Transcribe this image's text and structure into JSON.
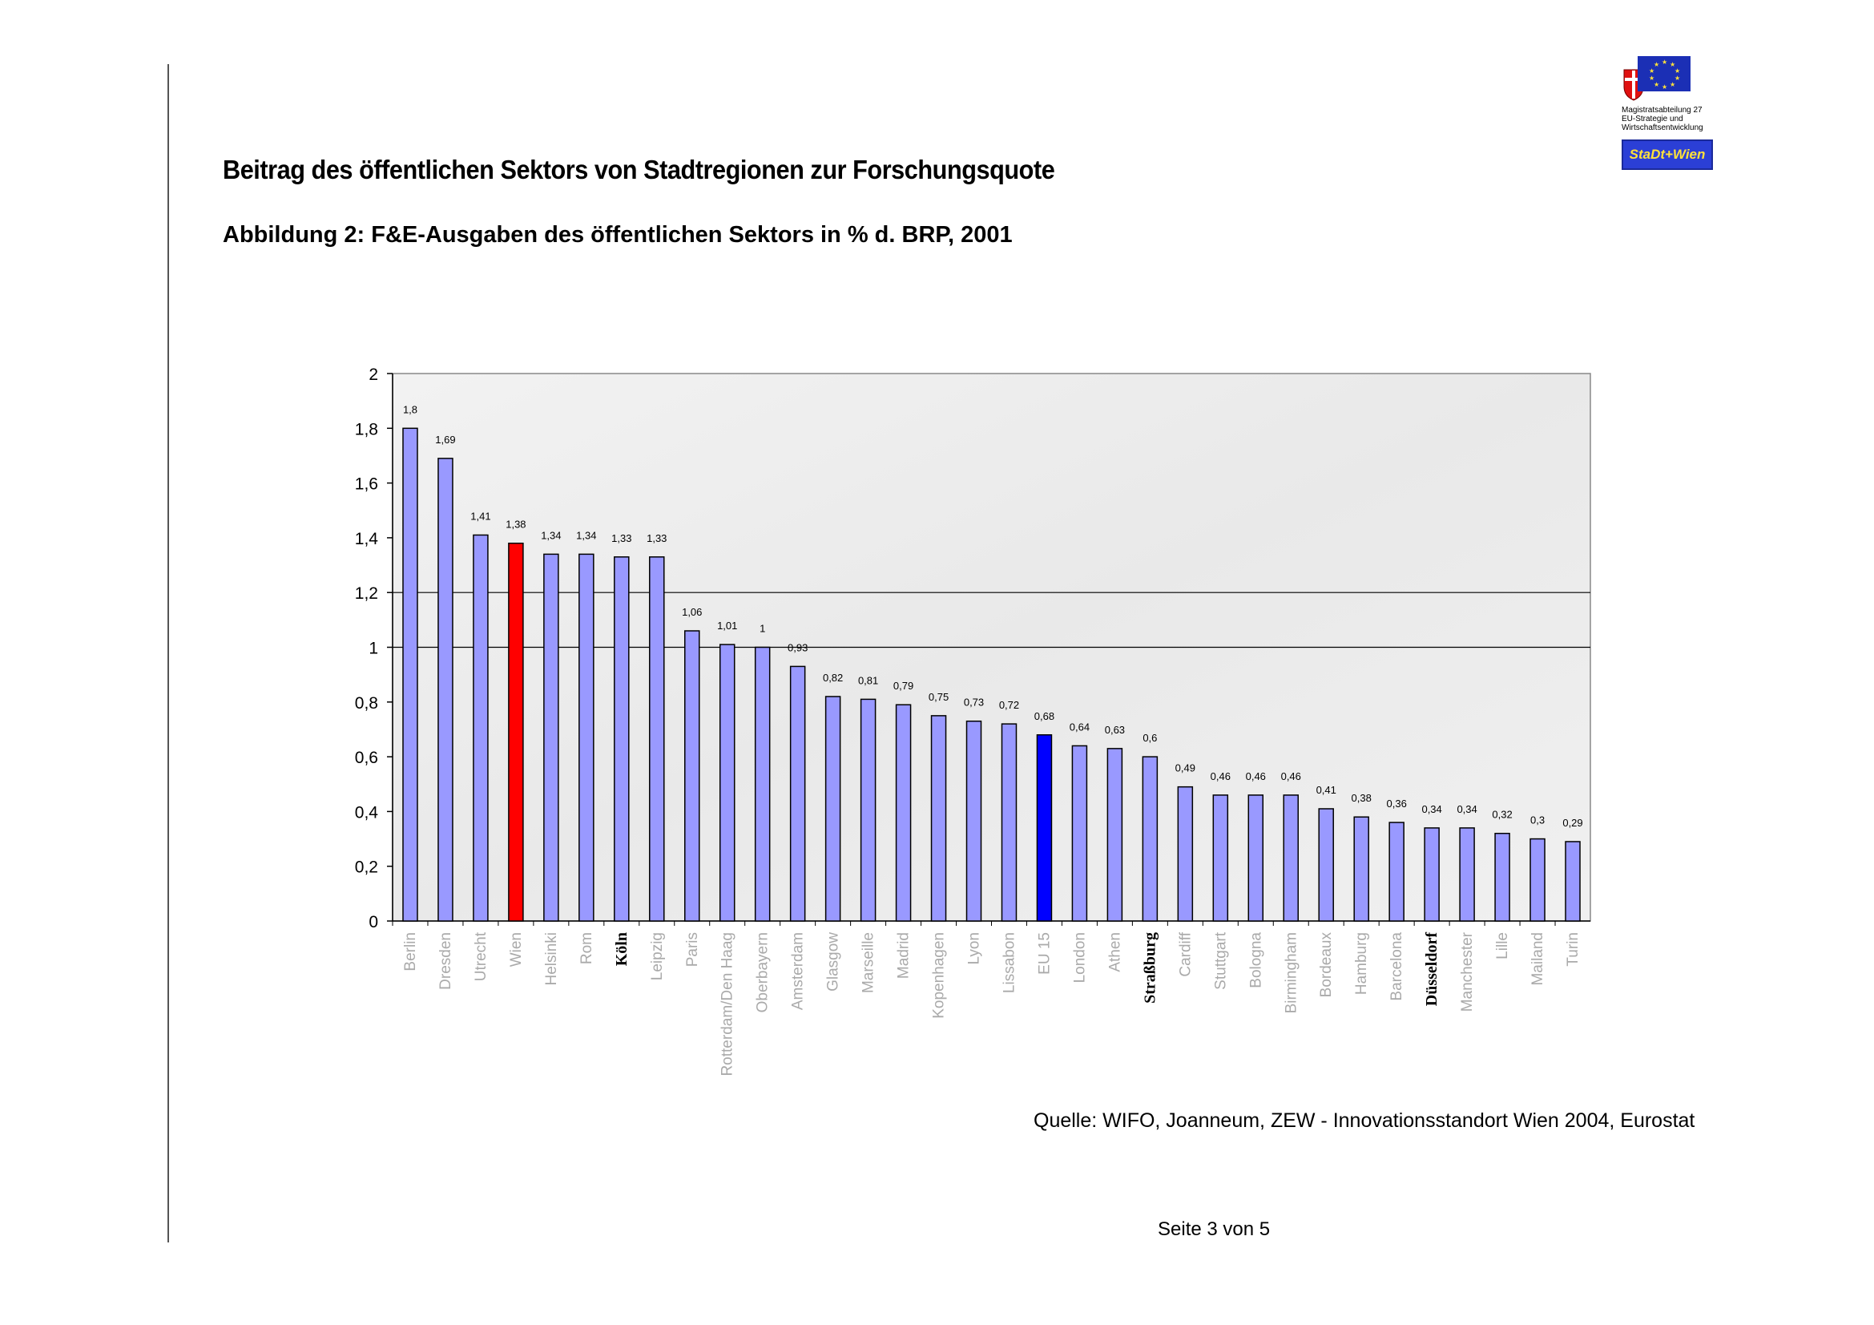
{
  "page": {
    "title": "Beitrag des öffentlichen Sektors von Stadtregionen zur Forschungsquote",
    "subtitle": "Abbildung 2: F&E-Ausgaben des öffentlichen Sektors in % d. BRP, 2001",
    "source": "Quelle: WIFO, Joanneum, ZEW - Innovationsstandort Wien 2004, Eurostat",
    "page_number": "Seite 3 von 5"
  },
  "logo": {
    "org_line1": "Magistratsabteilung 27",
    "org_line2": "EU-Strategie und",
    "org_line3": "Wirtschaftsentwicklung",
    "badge": "StaDt+Wien"
  },
  "colors": {
    "bar_default": "#9999ff",
    "bar_wien": "#ff0000",
    "bar_eu15": "#0000ff",
    "plot_bg": "#eeeeee"
  },
  "chart_data": {
    "type": "bar",
    "title": "",
    "xlabel": "",
    "ylabel": "",
    "ylim": [
      0,
      2
    ],
    "yticks": [
      "0",
      "0,2",
      "0,4",
      "0,6",
      "0,8",
      "1",
      "1,2",
      "1,4",
      "1,6",
      "1,8",
      "2"
    ],
    "gridlines_at": [
      1,
      1.2
    ],
    "categories": [
      "Berlin",
      "Dresden",
      "Utrecht",
      "Wien",
      "Helsinki",
      "Rom",
      "Köln",
      "Leipzig",
      "Paris",
      "Rotterdam/Den Haag",
      "Oberbayern",
      "Amsterdam",
      "Glasgow",
      "Marseille",
      "Madrid",
      "Kopenhagen",
      "Lyon",
      "Lissabon",
      "EU 15",
      "London",
      "Athen",
      "Straßburg",
      "Cardiff",
      "Stuttgart",
      "Bologna",
      "Birmingham",
      "Bordeaux",
      "Hamburg",
      "Barcelona",
      "Düsseldorf",
      "Manchester",
      "Lille",
      "Mailand",
      "Turin"
    ],
    "values": [
      1.8,
      1.69,
      1.41,
      1.38,
      1.34,
      1.34,
      1.33,
      1.33,
      1.06,
      1.01,
      1,
      0.93,
      0.82,
      0.81,
      0.79,
      0.75,
      0.73,
      0.72,
      0.68,
      0.64,
      0.63,
      0.6,
      0.49,
      0.46,
      0.46,
      0.46,
      0.41,
      0.38,
      0.36,
      0.34,
      0.34,
      0.32,
      0.3,
      0.29
    ],
    "value_labels": [
      "1,8",
      "1,69",
      "1,41",
      "1,38",
      "1,34",
      "1,34",
      "1,33",
      "1,33",
      "1,06",
      "1,01",
      "1",
      "0,93",
      "0,82",
      "0,81",
      "0,79",
      "0,75",
      "0,73",
      "0,72",
      "0,68",
      "0,64",
      "0,63",
      "0,6",
      "0,49",
      "0,46",
      "0,46",
      "0,46",
      "0,41",
      "0,38",
      "0,36",
      "0,34",
      "0,34",
      "0,32",
      "0,3",
      "0,29"
    ],
    "highlight": {
      "Wien": "red",
      "EU 15": "blue"
    },
    "bold_labels": [
      "Köln",
      "Straßburg",
      "Düsseldorf"
    ]
  }
}
